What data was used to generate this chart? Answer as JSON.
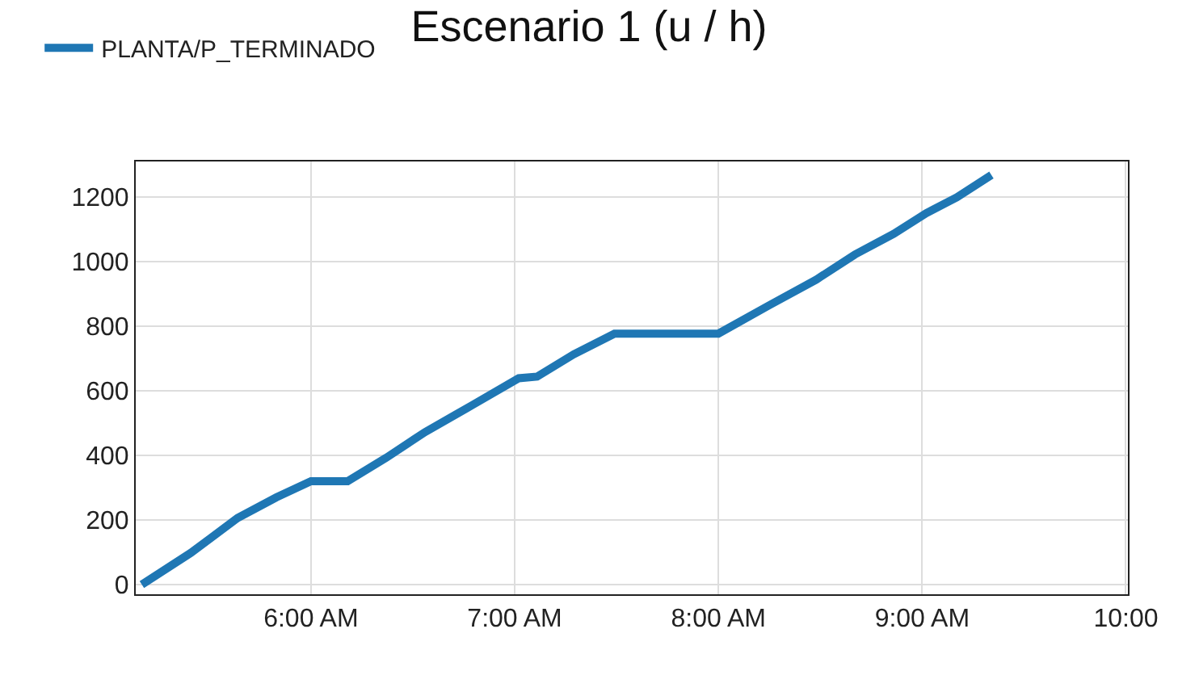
{
  "chart_data": {
    "type": "line",
    "title": "Escenario 1 (u / h)",
    "x": [
      5.17,
      5.41,
      5.64,
      5.83,
      6.0,
      6.18,
      6.37,
      6.56,
      6.79,
      7.02,
      7.11,
      7.29,
      7.49,
      8.0,
      8.25,
      8.48,
      8.67,
      8.86,
      9.02,
      9.17,
      9.34
    ],
    "series": [
      {
        "name": "PLANTA/P_TERMINADO",
        "color": "#1f77b4",
        "values": [
          0,
          98,
          206,
          270,
          320,
          320,
          393,
          472,
          555,
          639,
          644,
          713,
          777,
          777,
          865,
          944,
          1022,
          1086,
          1150,
          1199,
          1268
        ]
      }
    ],
    "xlim": [
      5.14,
      10.01
    ],
    "xticks": [
      {
        "value": 6,
        "label": "6:00 AM"
      },
      {
        "value": 7,
        "label": "7:00 AM"
      },
      {
        "value": 8,
        "label": "8:00 AM"
      },
      {
        "value": 9,
        "label": "9:00 AM"
      },
      {
        "value": 10,
        "label": "10:00"
      }
    ],
    "ylim": [
      -30,
      1310
    ],
    "yticks": [
      0,
      200,
      400,
      600,
      800,
      1000,
      1200
    ],
    "grid": true,
    "legend": "top left",
    "marker": "none",
    "line_style": "solid"
  }
}
